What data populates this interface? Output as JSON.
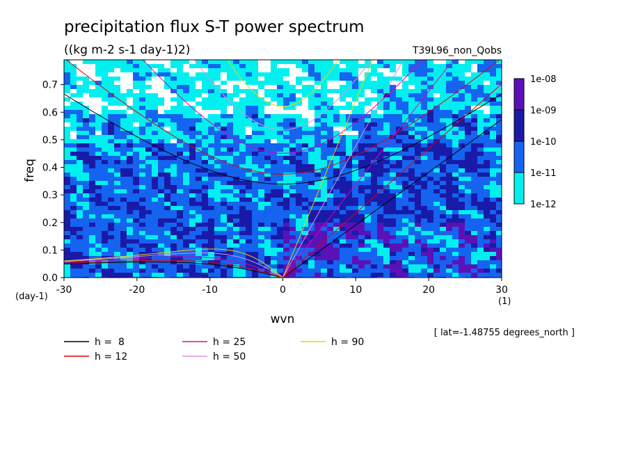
{
  "chart_data": {
    "type": "heatmap",
    "title": "precipitation flux S-T power spectrum",
    "subtitle": "((kg m-2 s-1 day-1)2)",
    "run_label": "T39L96_non_Qobs",
    "xlabel": "wvn",
    "ylabel": "freq",
    "x_unit": "(1)",
    "y_unit": "(day-1)",
    "xlim": [
      -30,
      30
    ],
    "ylim": [
      0,
      0.79
    ],
    "x_ticks": [
      -30,
      -20,
      -10,
      0,
      10,
      20,
      30
    ],
    "y_ticks": [
      0.0,
      0.1,
      0.2,
      0.3,
      0.4,
      0.5,
      0.6,
      0.7
    ],
    "colorbar": {
      "labels": [
        "1e-08",
        "1e-09",
        "1e-10",
        "1e-11",
        "1e-12"
      ],
      "colors": [
        "#5a12b8",
        "#1a1aa8",
        "#1464f0",
        "#00f0f0"
      ]
    },
    "background_levels": {
      "white": "#ffffff",
      "cyan": "#00f0f0",
      "blue": "#1464f0",
      "navy": "#1a1aa8",
      "violet": "#5a12b8"
    },
    "annotation": "[ lat=-1.48755 degrees_north ]",
    "series": [
      {
        "name": "h =  8",
        "h": 8,
        "color": "#000000"
      },
      {
        "name": "h = 12",
        "h": 12,
        "color": "#e00000"
      },
      {
        "name": "h = 25",
        "h": 25,
        "color": "#e000b0"
      },
      {
        "name": "h = 50",
        "h": 50,
        "color": "#e090e0"
      },
      {
        "name": "h = 90",
        "h": 90,
        "color": "#f0d000"
      }
    ],
    "grid": false
  }
}
